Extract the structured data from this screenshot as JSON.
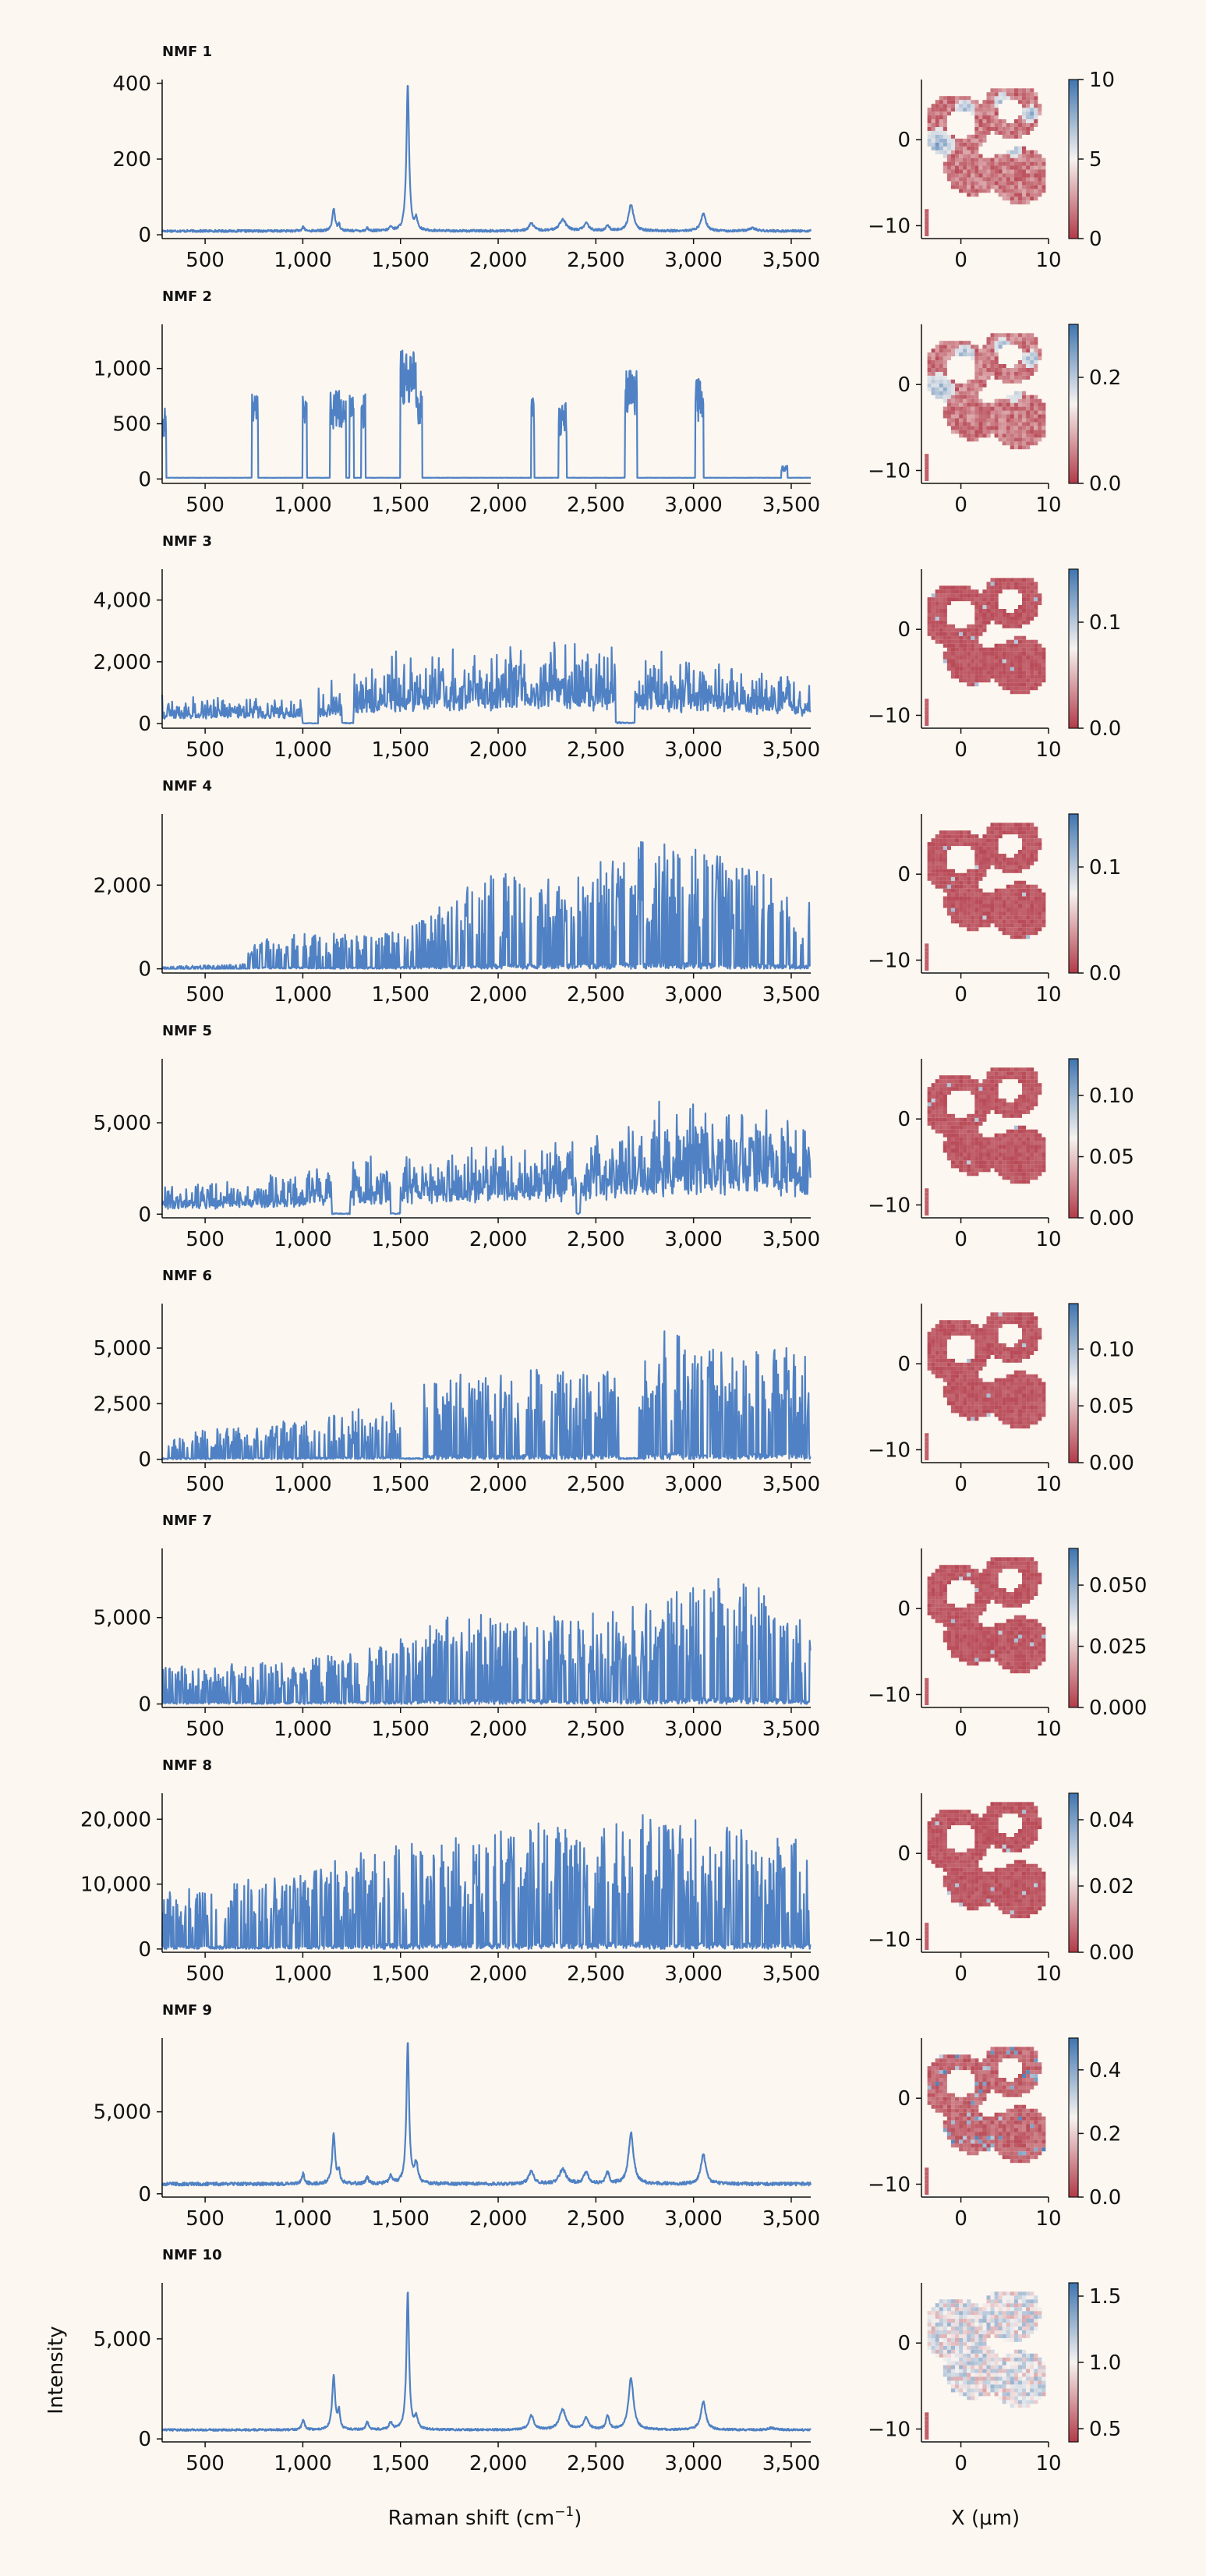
{
  "figure": {
    "ylabel": "Intensity",
    "xlabel_prefix": "Raman shift (cm",
    "xlabel_sup": "−1",
    "xlabel_suffix": ")",
    "map_xlabel": "X (μm)"
  },
  "colors": {
    "spectrum": "#4f81c4",
    "map_low": "#b23a48",
    "map_mid": "#f7f3f0",
    "map_high": "#3e75b0",
    "background": "#fcf7f0"
  },
  "chart_data": [
    {
      "type": "line",
      "title": "NMF 1",
      "style": "smooth",
      "xlim": [
        280,
        3600
      ],
      "ylim": [
        -10,
        410
      ],
      "yticks": [
        0,
        200,
        400
      ],
      "ytick_labels": [
        "0",
        "200",
        "400"
      ],
      "xticks": [
        500,
        1000,
        1500,
        2000,
        2500,
        3000,
        3500
      ],
      "xtick_labels": [
        "500",
        "1,000",
        "1,500",
        "2,000",
        "2,500",
        "3,000",
        "3,500"
      ],
      "baseline": 10,
      "noise": 3,
      "peaks": [
        [
          1002,
          12,
          6
        ],
        [
          1158,
          60,
          8
        ],
        [
          1185,
          18,
          6
        ],
        [
          1330,
          8,
          6
        ],
        [
          1450,
          10,
          8
        ],
        [
          1537,
          390,
          8
        ],
        [
          1580,
          30,
          8
        ],
        [
          2170,
          20,
          15
        ],
        [
          2330,
          30,
          20
        ],
        [
          2450,
          20,
          15
        ],
        [
          2560,
          15,
          10
        ],
        [
          2680,
          70,
          15
        ],
        [
          3050,
          45,
          15
        ],
        [
          3300,
          8,
          20
        ]
      ],
      "map": {
        "xlim": [
          -4.5,
          10
        ],
        "ylim": [
          -11.5,
          7
        ],
        "xticks": [
          0,
          10
        ],
        "yticks": [
          0,
          -10
        ],
        "colorbar_range": [
          0,
          10
        ],
        "colorbar_ticks": [
          "0",
          "5",
          "10"
        ],
        "mode": "rings_blue_patches"
      }
    },
    {
      "type": "line",
      "title": "NMF 2",
      "style": "blocky",
      "xlim": [
        280,
        3600
      ],
      "ylim": [
        -40,
        1400
      ],
      "yticks": [
        0,
        500,
        1000
      ],
      "ytick_labels": [
        "0",
        "500",
        "1,000"
      ],
      "xticks": [
        500,
        1000,
        1500,
        2000,
        2500,
        3000,
        3500
      ],
      "xtick_labels": [
        "500",
        "1,000",
        "1,500",
        "2,000",
        "2,500",
        "3,000",
        "3,500"
      ],
      "baseline": 10,
      "noise": 2,
      "blocks": [
        [
          280,
          300,
          700
        ],
        [
          740,
          770,
          780
        ],
        [
          1000,
          1020,
          780
        ],
        [
          1140,
          1220,
          800
        ],
        [
          1240,
          1260,
          770
        ],
        [
          1300,
          1320,
          770
        ],
        [
          1500,
          1580,
          1200
        ],
        [
          1580,
          1610,
          800
        ],
        [
          2170,
          2185,
          760
        ],
        [
          2310,
          2350,
          700
        ],
        [
          2650,
          2710,
          1000
        ],
        [
          3010,
          3050,
          950
        ],
        [
          3450,
          3480,
          120
        ]
      ],
      "map": {
        "xlim": [
          -4.5,
          10
        ],
        "ylim": [
          -11.5,
          7
        ],
        "xticks": [
          0,
          10
        ],
        "yticks": [
          0,
          -10
        ],
        "colorbar_range": [
          0,
          0.3
        ],
        "colorbar_ticks": [
          "0.0",
          "0.2"
        ],
        "mode": "rings_blue_patches"
      }
    },
    {
      "type": "line",
      "title": "NMF 3",
      "style": "noisy",
      "xlim": [
        280,
        3600
      ],
      "ylim": [
        -150,
        5000
      ],
      "yticks": [
        0,
        2000,
        4000
      ],
      "ytick_labels": [
        "0",
        "2,000",
        "4,000"
      ],
      "xticks": [
        500,
        1000,
        1500,
        2000,
        2500,
        3000,
        3500
      ],
      "xtick_labels": [
        "500",
        "1,000",
        "1,500",
        "2,000",
        "2,500",
        "3,000",
        "3,500"
      ],
      "env": [
        [
          280,
          900
        ],
        [
          1000,
          1000
        ],
        [
          1200,
          1600
        ],
        [
          1500,
          2400
        ],
        [
          2000,
          2600
        ],
        [
          2300,
          3000
        ],
        [
          2700,
          2400
        ],
        [
          3000,
          2200
        ],
        [
          3600,
          1500
        ]
      ],
      "gaps": [
        [
          1000,
          1080
        ],
        [
          1200,
          1260
        ],
        [
          2600,
          2700
        ]
      ],
      "map": {
        "xlim": [
          -4.5,
          10
        ],
        "ylim": [
          -11.5,
          7
        ],
        "xticks": [
          0,
          10
        ],
        "yticks": [
          0,
          -10
        ],
        "colorbar_range": [
          0,
          0.15
        ],
        "colorbar_ticks": [
          "0.0",
          "0.1"
        ],
        "mode": "mostly_red"
      }
    },
    {
      "type": "line",
      "title": "NMF 4",
      "style": "spiky",
      "xlim": [
        280,
        3600
      ],
      "ylim": [
        -100,
        3700
      ],
      "yticks": [
        0,
        2000
      ],
      "ytick_labels": [
        "0",
        "2,000"
      ],
      "xticks": [
        500,
        1000,
        1500,
        2000,
        2500,
        3000,
        3500
      ],
      "xtick_labels": [
        "500",
        "1,000",
        "1,500",
        "2,000",
        "2,500",
        "3,000",
        "3,500"
      ],
      "env": [
        [
          280,
          60
        ],
        [
          700,
          120
        ],
        [
          750,
          800
        ],
        [
          1500,
          900
        ],
        [
          1900,
          2200
        ],
        [
          2500,
          2500
        ],
        [
          2800,
          3200
        ],
        [
          3100,
          2800
        ],
        [
          3600,
          1800
        ]
      ],
      "map": {
        "xlim": [
          -4.5,
          10
        ],
        "ylim": [
          -11.5,
          7
        ],
        "xticks": [
          0,
          10
        ],
        "yticks": [
          0,
          -10
        ],
        "colorbar_range": [
          0,
          0.15
        ],
        "colorbar_ticks": [
          "0.0",
          "0.1"
        ],
        "mode": "mostly_red"
      }
    },
    {
      "type": "line",
      "title": "NMF 5",
      "style": "noisy",
      "xlim": [
        280,
        3600
      ],
      "ylim": [
        -200,
        8500
      ],
      "yticks": [
        0,
        5000
      ],
      "ytick_labels": [
        "0",
        "5,000"
      ],
      "xticks": [
        500,
        1000,
        1500,
        2000,
        2500,
        3000,
        3500
      ],
      "xtick_labels": [
        "500",
        "1,000",
        "1,500",
        "2,000",
        "2,500",
        "3,000",
        "3,500"
      ],
      "env": [
        [
          280,
          1500
        ],
        [
          1000,
          2500
        ],
        [
          1500,
          3500
        ],
        [
          2000,
          4000
        ],
        [
          2500,
          4500
        ],
        [
          2800,
          6000
        ],
        [
          3300,
          6500
        ],
        [
          3600,
          5000
        ]
      ],
      "gaps": [
        [
          1150,
          1240
        ],
        [
          1450,
          1500
        ],
        [
          2400,
          2420
        ]
      ],
      "map": {
        "xlim": [
          -4.5,
          10
        ],
        "ylim": [
          -11.5,
          7
        ],
        "xticks": [
          0,
          10
        ],
        "yticks": [
          0,
          -10
        ],
        "colorbar_range": [
          0,
          0.13
        ],
        "colorbar_ticks": [
          "0.00",
          "0.05",
          "0.10"
        ],
        "mode": "mostly_red"
      }
    },
    {
      "type": "line",
      "title": "NMF 6",
      "style": "spiky",
      "xlim": [
        280,
        3600
      ],
      "ylim": [
        -150,
        7000
      ],
      "yticks": [
        0,
        2500,
        5000
      ],
      "ytick_labels": [
        "0",
        "2,500",
        "5,000"
      ],
      "xticks": [
        500,
        1000,
        1500,
        2000,
        2500,
        3000,
        3500
      ],
      "xtick_labels": [
        "500",
        "1,000",
        "1,500",
        "2,000",
        "2,500",
        "3,000",
        "3,500"
      ],
      "env": [
        [
          280,
          1200
        ],
        [
          1000,
          1800
        ],
        [
          1400,
          2500
        ],
        [
          1700,
          3800
        ],
        [
          2300,
          4200
        ],
        [
          2700,
          4000
        ],
        [
          2850,
          5800
        ],
        [
          3200,
          5000
        ],
        [
          3600,
          5200
        ]
      ],
      "gaps": [
        [
          1500,
          1620
        ],
        [
          2620,
          2720
        ]
      ],
      "map": {
        "xlim": [
          -4.5,
          10
        ],
        "ylim": [
          -11.5,
          7
        ],
        "xticks": [
          0,
          10
        ],
        "yticks": [
          0,
          -10
        ],
        "colorbar_range": [
          0,
          0.14
        ],
        "colorbar_ticks": [
          "0.00",
          "0.05",
          "0.10"
        ],
        "mode": "mostly_red"
      }
    },
    {
      "type": "line",
      "title": "NMF 7",
      "style": "spiky",
      "xlim": [
        280,
        3600
      ],
      "ylim": [
        -200,
        9000
      ],
      "yticks": [
        0,
        5000
      ],
      "ytick_labels": [
        "0",
        "5,000"
      ],
      "xticks": [
        500,
        1000,
        1500,
        2000,
        2500,
        3000,
        3500
      ],
      "xtick_labels": [
        "500",
        "1,000",
        "1,500",
        "2,000",
        "2,500",
        "3,000",
        "3,500"
      ],
      "env": [
        [
          280,
          2200
        ],
        [
          1000,
          2600
        ],
        [
          1500,
          3800
        ],
        [
          1800,
          5500
        ],
        [
          2200,
          5000
        ],
        [
          2800,
          6000
        ],
        [
          3200,
          8000
        ],
        [
          3600,
          4500
        ]
      ],
      "map": {
        "xlim": [
          -4.5,
          10
        ],
        "ylim": [
          -11.5,
          7
        ],
        "xticks": [
          0,
          10
        ],
        "yticks": [
          0,
          -10
        ],
        "colorbar_range": [
          0,
          0.065
        ],
        "colorbar_ticks": [
          "0.000",
          "0.025",
          "0.050"
        ],
        "mode": "mostly_red"
      }
    },
    {
      "type": "line",
      "title": "NMF 8",
      "style": "spiky",
      "xlim": [
        280,
        3600
      ],
      "ylim": [
        -500,
        24000
      ],
      "yticks": [
        0,
        10000,
        20000
      ],
      "ytick_labels": [
        "0",
        "10,000",
        "20,000"
      ],
      "xticks": [
        500,
        1000,
        1500,
        2000,
        2500,
        3000,
        3500
      ],
      "xtick_labels": [
        "500",
        "1,000",
        "1,500",
        "2,000",
        "2,500",
        "3,000",
        "3,500"
      ],
      "env": [
        [
          280,
          9000
        ],
        [
          1000,
          12000
        ],
        [
          1500,
          17000
        ],
        [
          2000,
          19000
        ],
        [
          2600,
          21000
        ],
        [
          3000,
          20000
        ],
        [
          3600,
          17000
        ]
      ],
      "map": {
        "xlim": [
          -4.5,
          10
        ],
        "ylim": [
          -11.5,
          7
        ],
        "xticks": [
          0,
          10
        ],
        "yticks": [
          0,
          -10
        ],
        "colorbar_range": [
          0,
          0.048
        ],
        "colorbar_ticks": [
          "0.00",
          "0.02",
          "0.04"
        ],
        "mode": "mostly_red"
      }
    },
    {
      "type": "line",
      "title": "NMF 9",
      "style": "smooth",
      "xlim": [
        280,
        3600
      ],
      "ylim": [
        -200,
        9500
      ],
      "yticks": [
        0,
        5000
      ],
      "ytick_labels": [
        "0",
        "5,000"
      ],
      "xticks": [
        500,
        1000,
        1500,
        2000,
        2500,
        3000,
        3500
      ],
      "xtick_labels": [
        "500",
        "1,000",
        "1,500",
        "2,000",
        "2,500",
        "3,000",
        "3,500"
      ],
      "baseline": 600,
      "noise": 100,
      "peaks": [
        [
          1002,
          600,
          8
        ],
        [
          1158,
          3000,
          9
        ],
        [
          1185,
          800,
          6
        ],
        [
          1330,
          400,
          8
        ],
        [
          1450,
          500,
          10
        ],
        [
          1537,
          8700,
          8
        ],
        [
          1580,
          1200,
          10
        ],
        [
          2170,
          800,
          15
        ],
        [
          2330,
          900,
          20
        ],
        [
          2450,
          700,
          15
        ],
        [
          2560,
          700,
          10
        ],
        [
          2680,
          3100,
          15
        ],
        [
          3050,
          1800,
          15
        ]
      ],
      "map": {
        "xlim": [
          -4.5,
          10
        ],
        "ylim": [
          -11.5,
          7
        ],
        "xticks": [
          0,
          10
        ],
        "yticks": [
          0,
          -10
        ],
        "colorbar_range": [
          0,
          0.5
        ],
        "colorbar_ticks": [
          "0.0",
          "0.2",
          "0.4"
        ],
        "mode": "red_blue_speckles"
      }
    },
    {
      "type": "line",
      "title": "NMF 10",
      "style": "smooth",
      "xlim": [
        280,
        3600
      ],
      "ylim": [
        -150,
        7800
      ],
      "yticks": [
        0,
        5000
      ],
      "ytick_labels": [
        "0",
        "5,000"
      ],
      "xticks": [
        500,
        1000,
        1500,
        2000,
        2500,
        3000,
        3500
      ],
      "xtick_labels": [
        "500",
        "1,000",
        "1,500",
        "2,000",
        "2,500",
        "3,000",
        "3,500"
      ],
      "baseline": 450,
      "noise": 50,
      "peaks": [
        [
          1002,
          500,
          8
        ],
        [
          1158,
          2700,
          9
        ],
        [
          1185,
          900,
          6
        ],
        [
          1330,
          400,
          8
        ],
        [
          1450,
          350,
          10
        ],
        [
          1537,
          6900,
          8
        ],
        [
          1580,
          600,
          10
        ],
        [
          2170,
          700,
          15
        ],
        [
          2330,
          1000,
          20
        ],
        [
          2450,
          600,
          15
        ],
        [
          2560,
          700,
          10
        ],
        [
          2680,
          2600,
          15
        ],
        [
          3050,
          1400,
          15
        ],
        [
          3400,
          100,
          20
        ]
      ],
      "map": {
        "xlim": [
          -4.5,
          10
        ],
        "ylim": [
          -11.5,
          7
        ],
        "xticks": [
          0,
          10
        ],
        "yticks": [
          0,
          -10
        ],
        "colorbar_range": [
          0.4,
          1.6
        ],
        "colorbar_ticks": [
          "0.5",
          "1.0",
          "1.5"
        ],
        "mode": "pale_mixed"
      }
    }
  ]
}
